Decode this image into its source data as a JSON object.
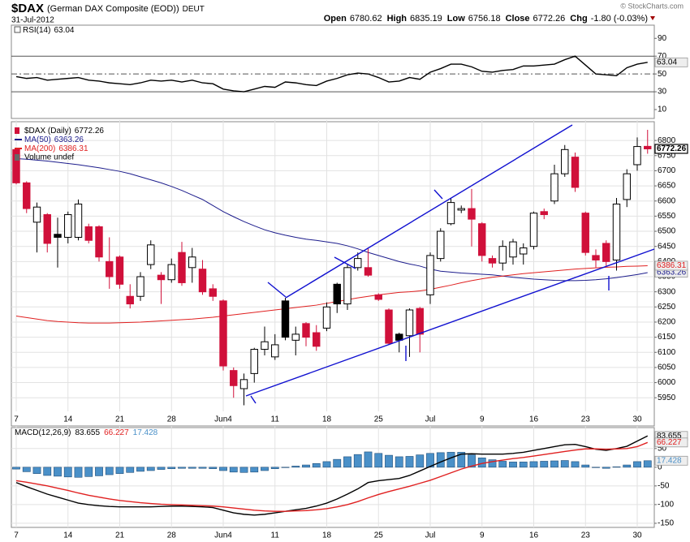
{
  "header": {
    "symbol": "$DAX",
    "name": "(German DAX Composite (EOD))",
    "exchange": "DEUT",
    "date": "31-Jul-2012",
    "open_label": "Open",
    "open": "6780.62",
    "high_label": "High",
    "high": "6835.19",
    "low_label": "Low",
    "low": "6756.18",
    "close_label": "Close",
    "close": "6772.26",
    "chg_label": "Chg",
    "chg": "-1.80 (-0.03%)",
    "copyright": "© StockCharts.com"
  },
  "chart_data": [
    {
      "type": "line",
      "series": [
        {
          "name": "RSI(14)",
          "color": "#000000",
          "values": [
            47,
            45,
            46,
            43,
            44,
            45,
            46,
            43,
            42,
            40,
            39,
            38,
            40,
            43,
            42,
            43,
            41,
            43,
            40,
            39,
            33,
            31,
            30,
            33,
            36,
            35,
            41,
            40,
            38,
            37,
            42,
            45,
            49,
            51,
            50,
            46,
            41,
            42,
            46,
            44,
            52,
            56,
            61,
            61,
            58,
            53,
            52,
            54,
            55,
            59,
            59,
            60,
            61,
            66,
            70,
            60,
            50,
            49,
            48,
            57,
            61,
            63.04
          ]
        }
      ],
      "ylim": [
        0,
        103
      ],
      "yticks": [
        10,
        30,
        50,
        70,
        90
      ],
      "levels": [
        70,
        50,
        30
      ],
      "level_color": "#555555"
    },
    {
      "type": "candlestick",
      "name": "$DAX (Daily)",
      "categories": [
        "7",
        null,
        null,
        null,
        null,
        "14",
        null,
        null,
        null,
        null,
        "21",
        null,
        null,
        null,
        null,
        "28",
        null,
        null,
        null,
        null,
        "Jun4",
        null,
        null,
        null,
        null,
        "11",
        null,
        null,
        null,
        null,
        "18",
        null,
        null,
        null,
        null,
        "25",
        null,
        null,
        null,
        null,
        "Jul",
        null,
        null,
        null,
        null,
        "9",
        null,
        null,
        null,
        null,
        "16",
        null,
        null,
        null,
        null,
        "23",
        null,
        null,
        null,
        null,
        "30",
        null
      ],
      "open": [
        6770,
        6660,
        6530,
        6555,
        6490,
        6480,
        6480,
        6515,
        6515,
        6400,
        6415,
        6285,
        6285,
        6390,
        6355,
        6340,
        6430,
        6380,
        6375,
        6310,
        6270,
        6040,
        5980,
        6030,
        6110,
        6085,
        6270,
        6140,
        6195,
        6165,
        6180,
        6325,
        6260,
        6380,
        6380,
        6290,
        6240,
        6160,
        6155,
        6245,
        6290,
        6410,
        6525,
        6570,
        6575,
        6525,
        6410,
        6395,
        6415,
        6425,
        6450,
        6565,
        6600,
        6690,
        6745,
        6560,
        6420,
        6460,
        6405,
        6605,
        6720,
        6780.62
      ],
      "high": [
        6775,
        6665,
        6595,
        6560,
        6545,
        6565,
        6605,
        6525,
        6520,
        6480,
        6420,
        6325,
        6365,
        6470,
        6365,
        6410,
        6465,
        6445,
        6405,
        6325,
        6275,
        6050,
        6030,
        6115,
        6185,
        6160,
        6280,
        6185,
        6200,
        6190,
        6265,
        6330,
        6390,
        6430,
        6445,
        6295,
        6245,
        6165,
        6245,
        6250,
        6430,
        6510,
        6610,
        6585,
        6640,
        6530,
        6420,
        6470,
        6475,
        6460,
        6565,
        6575,
        6720,
        6785,
        6760,
        6565,
        6440,
        6470,
        6610,
        6705,
        6810,
        6835.19
      ],
      "low": [
        6655,
        6560,
        6430,
        6430,
        6380,
        6460,
        6470,
        6460,
        6400,
        6310,
        6310,
        6245,
        6270,
        6375,
        6260,
        6330,
        6320,
        6330,
        6290,
        6270,
        6040,
        5950,
        5925,
        6000,
        6090,
        6075,
        6140,
        6090,
        6120,
        6105,
        6170,
        6230,
        6240,
        6370,
        6350,
        6270,
        6125,
        6100,
        6085,
        6100,
        6260,
        6400,
        6520,
        6560,
        6450,
        6400,
        6380,
        6370,
        6390,
        6390,
        6440,
        6540,
        6590,
        6680,
        6630,
        6420,
        6380,
        6385,
        6370,
        6580,
        6700,
        6756.18
      ],
      "close": [
        6660,
        6575,
        6580,
        6460,
        6480,
        6555,
        6590,
        6470,
        6415,
        6350,
        6325,
        6260,
        6350,
        6455,
        6340,
        6390,
        6330,
        6415,
        6300,
        6285,
        6055,
        5990,
        6010,
        6110,
        6135,
        6125,
        6150,
        6160,
        6150,
        6120,
        6250,
        6260,
        6380,
        6410,
        6355,
        6275,
        6130,
        6140,
        6240,
        6160,
        6420,
        6500,
        6595,
        6575,
        6540,
        6420,
        6395,
        6450,
        6465,
        6445,
        6560,
        6555,
        6690,
        6770,
        6645,
        6430,
        6405,
        6400,
        6590,
        6690,
        6780,
        6772.26
      ],
      "up_color": "#ffffff",
      "down_color": "#d0103a",
      "hold_color": "#000000",
      "series": [
        {
          "name": "MA(50)",
          "color": "#1c1c8c",
          "values": [
            6740,
            6738,
            6735,
            6732,
            6728,
            6724,
            6720,
            6715,
            6710,
            6704,
            6698,
            6690,
            6680,
            6670,
            6660,
            6648,
            6635,
            6620,
            6605,
            6585,
            6565,
            6548,
            6532,
            6518,
            6505,
            6495,
            6487,
            6480,
            6474,
            6470,
            6465,
            6460,
            6452,
            6442,
            6430,
            6420,
            6410,
            6400,
            6392,
            6385,
            6375,
            6368,
            6365,
            6362,
            6360,
            6358,
            6356,
            6352,
            6348,
            6345,
            6342,
            6340,
            6338,
            6337,
            6337,
            6338,
            6340,
            6343,
            6347,
            6352,
            6357,
            6363.26
          ]
        },
        {
          "name": "MA(200)",
          "color": "#e02020",
          "values": [
            6220,
            6215,
            6210,
            6205,
            6202,
            6200,
            6198,
            6197,
            6197,
            6197,
            6198,
            6199,
            6200,
            6202,
            6204,
            6206,
            6208,
            6210,
            6213,
            6216,
            6220,
            6224,
            6228,
            6232,
            6236,
            6240,
            6244,
            6248,
            6252,
            6256,
            6262,
            6268,
            6274,
            6280,
            6285,
            6290,
            6294,
            6298,
            6300,
            6303,
            6308,
            6315,
            6322,
            6330,
            6337,
            6343,
            6348,
            6352,
            6356,
            6360,
            6363,
            6366,
            6369,
            6372,
            6375,
            6377,
            6379,
            6381,
            6382,
            6384,
            6385,
            6386.31
          ]
        }
      ],
      "volume_label": "Volume undef",
      "ylim": [
        5905,
        6862
      ],
      "yticks": [
        5950,
        6000,
        6050,
        6100,
        6150,
        6200,
        6250,
        6300,
        6350,
        6400,
        6450,
        6500,
        6550,
        6600,
        6650,
        6700,
        6750,
        6800
      ],
      "grid": true
    },
    {
      "type": "macd",
      "categories": [
        "7",
        null,
        null,
        null,
        null,
        "14",
        null,
        null,
        null,
        null,
        "21",
        null,
        null,
        null,
        null,
        "28",
        null,
        null,
        null,
        null,
        "Jun4",
        null,
        null,
        null,
        null,
        "11",
        null,
        null,
        null,
        null,
        "18",
        null,
        null,
        null,
        null,
        "25",
        null,
        null,
        null,
        null,
        "Jul",
        null,
        null,
        null,
        null,
        "9",
        null,
        null,
        null,
        null,
        "16",
        null,
        null,
        null,
        null,
        "23",
        null,
        null,
        null,
        null,
        "30",
        null
      ],
      "series": [
        {
          "name": "MACD(12,26,9)",
          "color": "#000000",
          "values": [
            -41,
            -52,
            -62,
            -72,
            -80,
            -88,
            -96,
            -100,
            -103,
            -105,
            -106,
            -106,
            -106,
            -106,
            -105,
            -104,
            -104,
            -105,
            -106,
            -108,
            -115,
            -122,
            -126,
            -128,
            -126,
            -122,
            -118,
            -114,
            -110,
            -104,
            -96,
            -85,
            -72,
            -58,
            -41,
            -36,
            -33,
            -30,
            -22,
            -10,
            2,
            14,
            25,
            35,
            36,
            35,
            35,
            35,
            37,
            40,
            45,
            50,
            55,
            60,
            61,
            55,
            48,
            45,
            50,
            56,
            70,
            83.655
          ]
        },
        {
          "color": "#e02020",
          "values": [
            -36,
            -40,
            -45,
            -50,
            -56,
            -62,
            -69,
            -75,
            -80,
            -85,
            -89,
            -92,
            -95,
            -97,
            -99,
            -100,
            -101,
            -102,
            -103,
            -104,
            -106,
            -109,
            -112,
            -115,
            -117,
            -118,
            -118,
            -117,
            -116,
            -114,
            -111,
            -106,
            -100,
            -92,
            -82,
            -73,
            -65,
            -58,
            -51,
            -43,
            -35,
            -25,
            -15,
            -5,
            3,
            10,
            15,
            19,
            23,
            26,
            30,
            34,
            38,
            42,
            46,
            49,
            49,
            48,
            49,
            50,
            55,
            66.227
          ]
        },
        {
          "color": "#4a90c8",
          "style": "bar",
          "values": [
            -5,
            -12,
            -17,
            -22,
            -24,
            -26,
            -27,
            -25,
            -23,
            -20,
            -17,
            -14,
            -11,
            -9,
            -6,
            -4,
            -3,
            -3,
            -3,
            -4,
            -9,
            -13,
            -14,
            -13,
            -9,
            -4,
            0,
            3,
            6,
            10,
            15,
            21,
            28,
            34,
            41,
            37,
            32,
            28,
            29,
            33,
            37,
            39,
            40,
            40,
            33,
            25,
            20,
            16,
            14,
            14,
            15,
            16,
            17,
            18,
            15,
            6,
            -1,
            -3,
            1,
            6,
            15,
            17.428
          ]
        }
      ],
      "ylim": [
        -161,
        106
      ],
      "yticks": [
        -150,
        -100,
        -50,
        0,
        50
      ],
      "grid": true
    }
  ]
}
